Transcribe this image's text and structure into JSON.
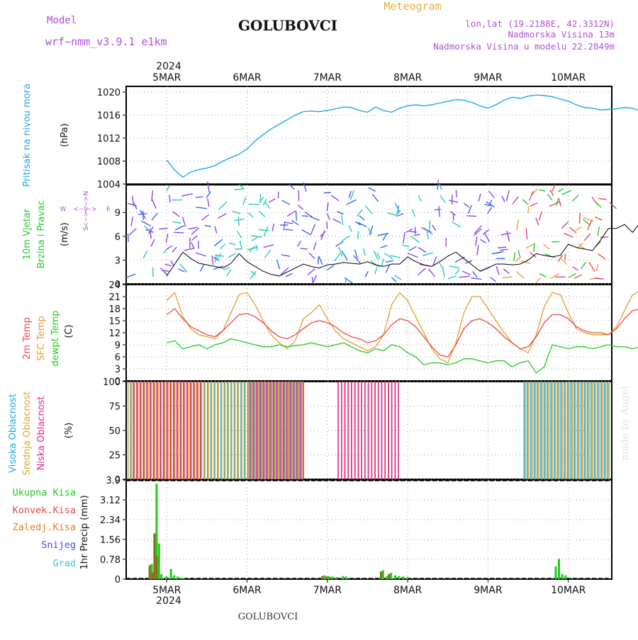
{
  "header": {
    "model_label": "Model",
    "model_name": "wrf−nmm_v3.9.1 e1km",
    "station": "GOLUBOVCI",
    "meteogram": "Meteogram",
    "lonlat": "lon,lat (19.2188E, 42.3312N)",
    "elevation": "Nadmorska Visina 13m",
    "model_elevation": "Nadmorska Visina u modelu 22.2849m",
    "year_top": "2024",
    "year_bottom": "2024",
    "footer_station": "GOLUBOVCI",
    "credit": "made by Angel"
  },
  "colors": {
    "purple": "#b050d8",
    "gold": "#e8b040",
    "pressure": "#1ca8e8",
    "temp2m": "#f04848",
    "sfc": "#e0a030",
    "dewpt": "#22cc22",
    "high_cloud": "#20a8e0",
    "mid_cloud": "#e0a828",
    "low_cloud": "#e02888",
    "total_precip": "#22cc22",
    "conv_precip": "#f04848",
    "frozen": "#f07828",
    "snow": "#4848f0",
    "hail": "#30c8d8",
    "wind_speed": "#000000"
  },
  "days": [
    "5MAR",
    "6MAR",
    "7MAR",
    "8MAR",
    "9MAR",
    "10MAR"
  ],
  "chart_data": [
    {
      "type": "line",
      "panel": "pressure",
      "ylabel_main": "Pritisak na nivou mora",
      "ylabel_unit": "(hPa)",
      "yticks": [
        "1020",
        "1016",
        "1012",
        "1008",
        "1004"
      ],
      "ylim": [
        1004,
        1021
      ],
      "series": [
        {
          "name": "Pritisak na nivou mora",
          "x": [
            0,
            0.1,
            0.2,
            0.3,
            0.4,
            0.5,
            0.6,
            0.7,
            0.8,
            0.9,
            1.0,
            1.1,
            1.2,
            1.3,
            1.4,
            1.5,
            1.6,
            1.7,
            1.8,
            1.9,
            2.0,
            2.1,
            2.2,
            2.3,
            2.4,
            2.5,
            2.6,
            2.7,
            2.8,
            2.9,
            3.0,
            3.1,
            3.2,
            3.3,
            3.4,
            3.5,
            3.6,
            3.7,
            3.8,
            3.9,
            4.0,
            4.1,
            4.2,
            4.3,
            4.4,
            4.5,
            4.6,
            4.7,
            4.8,
            4.9,
            5.0,
            5.1,
            5.2,
            5.3,
            5.4,
            5.5,
            5.6,
            5.7,
            5.8,
            5.9,
            6.0
          ],
          "values": [
            1008.2,
            1006.4,
            1005.2,
            1006.1,
            1006.5,
            1006.8,
            1007.2,
            1008.0,
            1008.6,
            1009.2,
            1010.1,
            1011.5,
            1012.6,
            1013.6,
            1014.4,
            1015.2,
            1016.0,
            1016.6,
            1016.7,
            1016.6,
            1016.8,
            1017.1,
            1017.4,
            1017.3,
            1016.8,
            1016.5,
            1017.4,
            1016.8,
            1016.5,
            1017.2,
            1017.6,
            1017.8,
            1017.6,
            1017.8,
            1018.1,
            1018.4,
            1018.7,
            1018.6,
            1018.2,
            1017.6,
            1017.2,
            1017.8,
            1018.6,
            1019.1,
            1018.9,
            1019.3,
            1019.5,
            1019.4,
            1019.2,
            1018.8,
            1018.4,
            1017.8,
            1017.3,
            1017.2,
            1016.9,
            1017.0,
            1017.1,
            1017.3,
            1017.2,
            1016.7,
            1015.8
          ]
        }
      ]
    },
    {
      "type": "line",
      "panel": "wind",
      "ylabel_main": "10m Vjetar",
      "ylabel_sub": "Brzina i Pravac",
      "ylabel_unit": "(m/s)",
      "compass_n": "N",
      "compass_w": "W",
      "compass_e": "E",
      "compass_s": "S",
      "compass_arrow_top": "<−>",
      "compass_arrow_side": "<−|−>",
      "compass_arrow_bottom": "<−>",
      "yticks": [
        "9",
        "6",
        "3",
        "0"
      ],
      "ylim": [
        0,
        12.5
      ],
      "series": [
        {
          "name": "wind speed",
          "x": [
            0,
            0.1,
            0.2,
            0.3,
            0.4,
            0.5,
            0.6,
            0.7,
            0.8,
            0.9,
            1.0,
            1.1,
            1.2,
            1.3,
            1.4,
            1.5,
            1.6,
            1.7,
            1.8,
            1.9,
            2.0,
            2.1,
            2.2,
            2.3,
            2.4,
            2.5,
            2.6,
            2.7,
            2.8,
            2.9,
            3.0,
            3.1,
            3.2,
            3.3,
            3.4,
            3.5,
            3.6,
            3.7,
            3.8,
            3.9,
            4.0,
            4.1,
            4.2,
            4.3,
            4.4,
            4.5,
            4.6,
            4.7,
            4.8,
            4.9,
            5.0,
            5.1,
            5.2,
            5.3,
            5.4,
            5.5,
            5.6,
            5.7,
            5.8,
            5.9,
            6.0
          ],
          "values": [
            1.0,
            2.5,
            4.0,
            3.2,
            2.6,
            2.4,
            2.2,
            2.0,
            2.6,
            3.8,
            2.8,
            2.2,
            1.6,
            1.2,
            1.0,
            1.5,
            2.0,
            2.5,
            2.2,
            2.0,
            2.4,
            2.5,
            2.7,
            2.6,
            2.5,
            2.8,
            2.4,
            2.2,
            2.5,
            2.5,
            3.4,
            2.8,
            2.4,
            2.2,
            2.8,
            3.5,
            4.0,
            3.2,
            2.4,
            1.6,
            2.0,
            2.5,
            2.5,
            2.4,
            2.5,
            3.0,
            3.8,
            3.6,
            3.4,
            3.6,
            5.0,
            4.6,
            4.4,
            4.2,
            5.5,
            7.0,
            7.0,
            7.5,
            6.5,
            7.8,
            7.2
          ]
        }
      ]
    },
    {
      "type": "line",
      "panel": "temperature",
      "ylabel_a": "2m Temp",
      "ylabel_b": "SFC Temp",
      "ylabel_c": "dewpt Temp",
      "ylabel_unit": "(C)",
      "yticks": [
        "24",
        "21",
        "18",
        "15",
        "12",
        "9",
        "6",
        "3",
        "0"
      ],
      "ylim": [
        0,
        24
      ],
      "series": [
        {
          "name": "2m Temp",
          "x": [
            0,
            0.1,
            0.2,
            0.3,
            0.4,
            0.5,
            0.6,
            0.7,
            0.8,
            0.9,
            1.0,
            1.1,
            1.2,
            1.3,
            1.4,
            1.5,
            1.6,
            1.7,
            1.8,
            1.9,
            2.0,
            2.1,
            2.2,
            2.3,
            2.4,
            2.5,
            2.6,
            2.7,
            2.8,
            2.9,
            3.0,
            3.1,
            3.2,
            3.3,
            3.4,
            3.5,
            3.6,
            3.7,
            3.8,
            3.9,
            4.0,
            4.1,
            4.2,
            4.3,
            4.4,
            4.5,
            4.6,
            4.7,
            4.8,
            4.9,
            5.0,
            5.1,
            5.2,
            5.3,
            5.4,
            5.5,
            5.6,
            5.7,
            5.8,
            5.9,
            6.0
          ],
          "values": [
            16.5,
            18.0,
            15.5,
            13.5,
            12.5,
            11.5,
            11.0,
            12.5,
            14.5,
            16.5,
            16.8,
            16.0,
            14.5,
            12.5,
            11.0,
            10.5,
            11.5,
            13.0,
            14.5,
            15.0,
            14.5,
            13.5,
            12.0,
            11.0,
            10.5,
            9.5,
            10.0,
            11.5,
            14.0,
            15.5,
            15.0,
            13.5,
            11.0,
            8.5,
            6.5,
            6.0,
            9.0,
            13.0,
            15.0,
            15.5,
            14.5,
            13.0,
            11.0,
            9.5,
            8.0,
            8.5,
            11.0,
            14.5,
            16.5,
            16.5,
            15.5,
            13.5,
            12.5,
            12.0,
            12.0,
            11.5,
            13.0,
            15.5,
            17.5,
            18.0,
            18.5
          ]
        },
        {
          "name": "SFC Temp",
          "x": [
            0,
            0.1,
            0.2,
            0.3,
            0.4,
            0.5,
            0.6,
            0.7,
            0.8,
            0.9,
            1.0,
            1.1,
            1.2,
            1.3,
            1.4,
            1.5,
            1.6,
            1.7,
            1.8,
            1.9,
            2.0,
            2.1,
            2.2,
            2.3,
            2.4,
            2.5,
            2.6,
            2.7,
            2.8,
            2.9,
            3.0,
            3.1,
            3.2,
            3.3,
            3.4,
            3.5,
            3.6,
            3.7,
            3.8,
            3.9,
            4.0,
            4.1,
            4.2,
            4.3,
            4.4,
            4.5,
            4.6,
            4.7,
            4.8,
            4.9,
            5.0,
            5.1,
            5.2,
            5.3,
            5.4,
            5.5,
            5.6,
            5.7,
            5.8,
            5.9,
            6.0
          ],
          "values": [
            20.0,
            22.0,
            16.0,
            13.0,
            11.5,
            11.0,
            10.5,
            12.5,
            17.0,
            21.5,
            22.0,
            19.0,
            15.0,
            11.5,
            9.5,
            8.0,
            10.0,
            15.5,
            17.0,
            19.0,
            15.5,
            12.5,
            10.5,
            9.5,
            8.5,
            7.5,
            8.5,
            11.5,
            19.0,
            22.0,
            20.0,
            16.0,
            12.0,
            8.0,
            5.5,
            4.5,
            9.5,
            17.0,
            21.0,
            21.0,
            18.0,
            15.0,
            12.0,
            9.5,
            8.0,
            7.0,
            11.5,
            18.5,
            22.0,
            21.5,
            17.0,
            13.0,
            12.0,
            11.5,
            11.5,
            11.5,
            13.5,
            17.5,
            21.5,
            22.5,
            22.5
          ]
        },
        {
          "name": "dewpt Temp",
          "x": [
            0,
            0.1,
            0.2,
            0.3,
            0.4,
            0.5,
            0.6,
            0.7,
            0.8,
            0.9,
            1.0,
            1.1,
            1.2,
            1.3,
            1.4,
            1.5,
            1.6,
            1.7,
            1.8,
            1.9,
            2.0,
            2.1,
            2.2,
            2.3,
            2.4,
            2.5,
            2.6,
            2.7,
            2.8,
            2.9,
            3.0,
            3.1,
            3.2,
            3.3,
            3.4,
            3.5,
            3.6,
            3.7,
            3.8,
            3.9,
            4.0,
            4.1,
            4.2,
            4.3,
            4.4,
            4.5,
            4.6,
            4.7,
            4.8,
            4.9,
            5.0,
            5.1,
            5.2,
            5.3,
            5.4,
            5.5,
            5.6,
            5.7,
            5.8,
            5.9,
            6.0
          ],
          "values": [
            9.5,
            10.0,
            8.0,
            8.5,
            9.0,
            8.0,
            9.0,
            9.5,
            10.5,
            10.0,
            9.5,
            9.0,
            8.5,
            8.5,
            9.0,
            8.5,
            8.8,
            9.0,
            9.5,
            9.0,
            8.5,
            9.0,
            9.5,
            8.5,
            7.5,
            7.0,
            8.0,
            7.5,
            9.0,
            8.5,
            7.0,
            6.0,
            4.0,
            4.5,
            4.5,
            4.0,
            4.5,
            5.5,
            5.5,
            5.0,
            4.5,
            5.0,
            5.0,
            3.5,
            4.5,
            5.0,
            2.0,
            3.5,
            9.0,
            8.5,
            8.0,
            8.5,
            8.5,
            8.0,
            8.5,
            9.0,
            8.5,
            8.5,
            8.0,
            8.5,
            9.0
          ]
        }
      ]
    },
    {
      "type": "bar",
      "panel": "clouds",
      "ylabel_a": "Visoka Oblacnost",
      "ylabel_b": "Srednja Oblacnost",
      "ylabel_c": "Niska Oblacnost",
      "ylabel_unit": "(%)",
      "yticks": [
        "100",
        "75",
        "50",
        "25",
        "0"
      ],
      "ylim": [
        0,
        100
      ],
      "series": [
        {
          "name": "Visoka Oblacnost",
          "ranges": [
            [
              0.05,
              2.2
            ],
            [
              4.95,
              6.0
            ]
          ],
          "value": 100
        },
        {
          "name": "Srednja Oblacnost",
          "ranges": [
            [
              0.0,
              2.2
            ],
            [
              2.7,
              3.35
            ],
            [
              4.95,
              6.0
            ]
          ],
          "value": 100
        },
        {
          "name": "Niska Oblacnost",
          "ranges": [
            [
              0.05,
              0.9
            ],
            [
              1.5,
              2.2
            ],
            [
              2.6,
              3.35
            ]
          ],
          "value": 100
        }
      ]
    },
    {
      "type": "bar",
      "panel": "precip",
      "ylabel_unit": "1hr Precip (mm)",
      "legend": [
        "Ukupna Kisa",
        "Konvek.Kisa",
        "Zaledj.Kisa",
        "Snijeg",
        "Grad"
      ],
      "yticks": [
        "3.9",
        "3.12",
        "2.34",
        "1.56",
        "0.78",
        "0"
      ],
      "ylim": [
        0,
        3.9
      ],
      "series": [
        {
          "name": "Ukupna Kisa",
          "x": [
            0.3,
            0.33,
            0.36,
            0.39,
            0.42,
            0.48,
            0.54,
            0.58,
            0.62,
            0.66,
            0.7,
            2.45,
            2.5,
            2.55,
            2.6,
            2.68,
            2.72,
            3.18,
            3.23,
            3.28,
            3.33,
            3.38,
            3.43,
            3.48,
            5.33,
            5.37,
            5.41,
            5.45
          ],
          "values": [
            0.6,
            0.3,
            3.75,
            1.4,
            0.2,
            0.1,
            0.4,
            0.15,
            0.1,
            0.05,
            0.05,
            0.15,
            0.12,
            0.1,
            0.08,
            0.12,
            0.1,
            0.35,
            0.12,
            0.25,
            0.15,
            0.12,
            0.1,
            0.08,
            0.5,
            0.8,
            0.2,
            0.15
          ]
        },
        {
          "name": "Konvek.Kisa",
          "x": [
            0.3,
            0.33,
            0.36,
            0.39,
            2.45,
            2.5,
            2.55,
            3.18,
            3.28
          ],
          "values": [
            0.55,
            0.25,
            1.8,
            0.9,
            0.12,
            0.1,
            0.08,
            0.3,
            0.2
          ]
        }
      ]
    }
  ]
}
